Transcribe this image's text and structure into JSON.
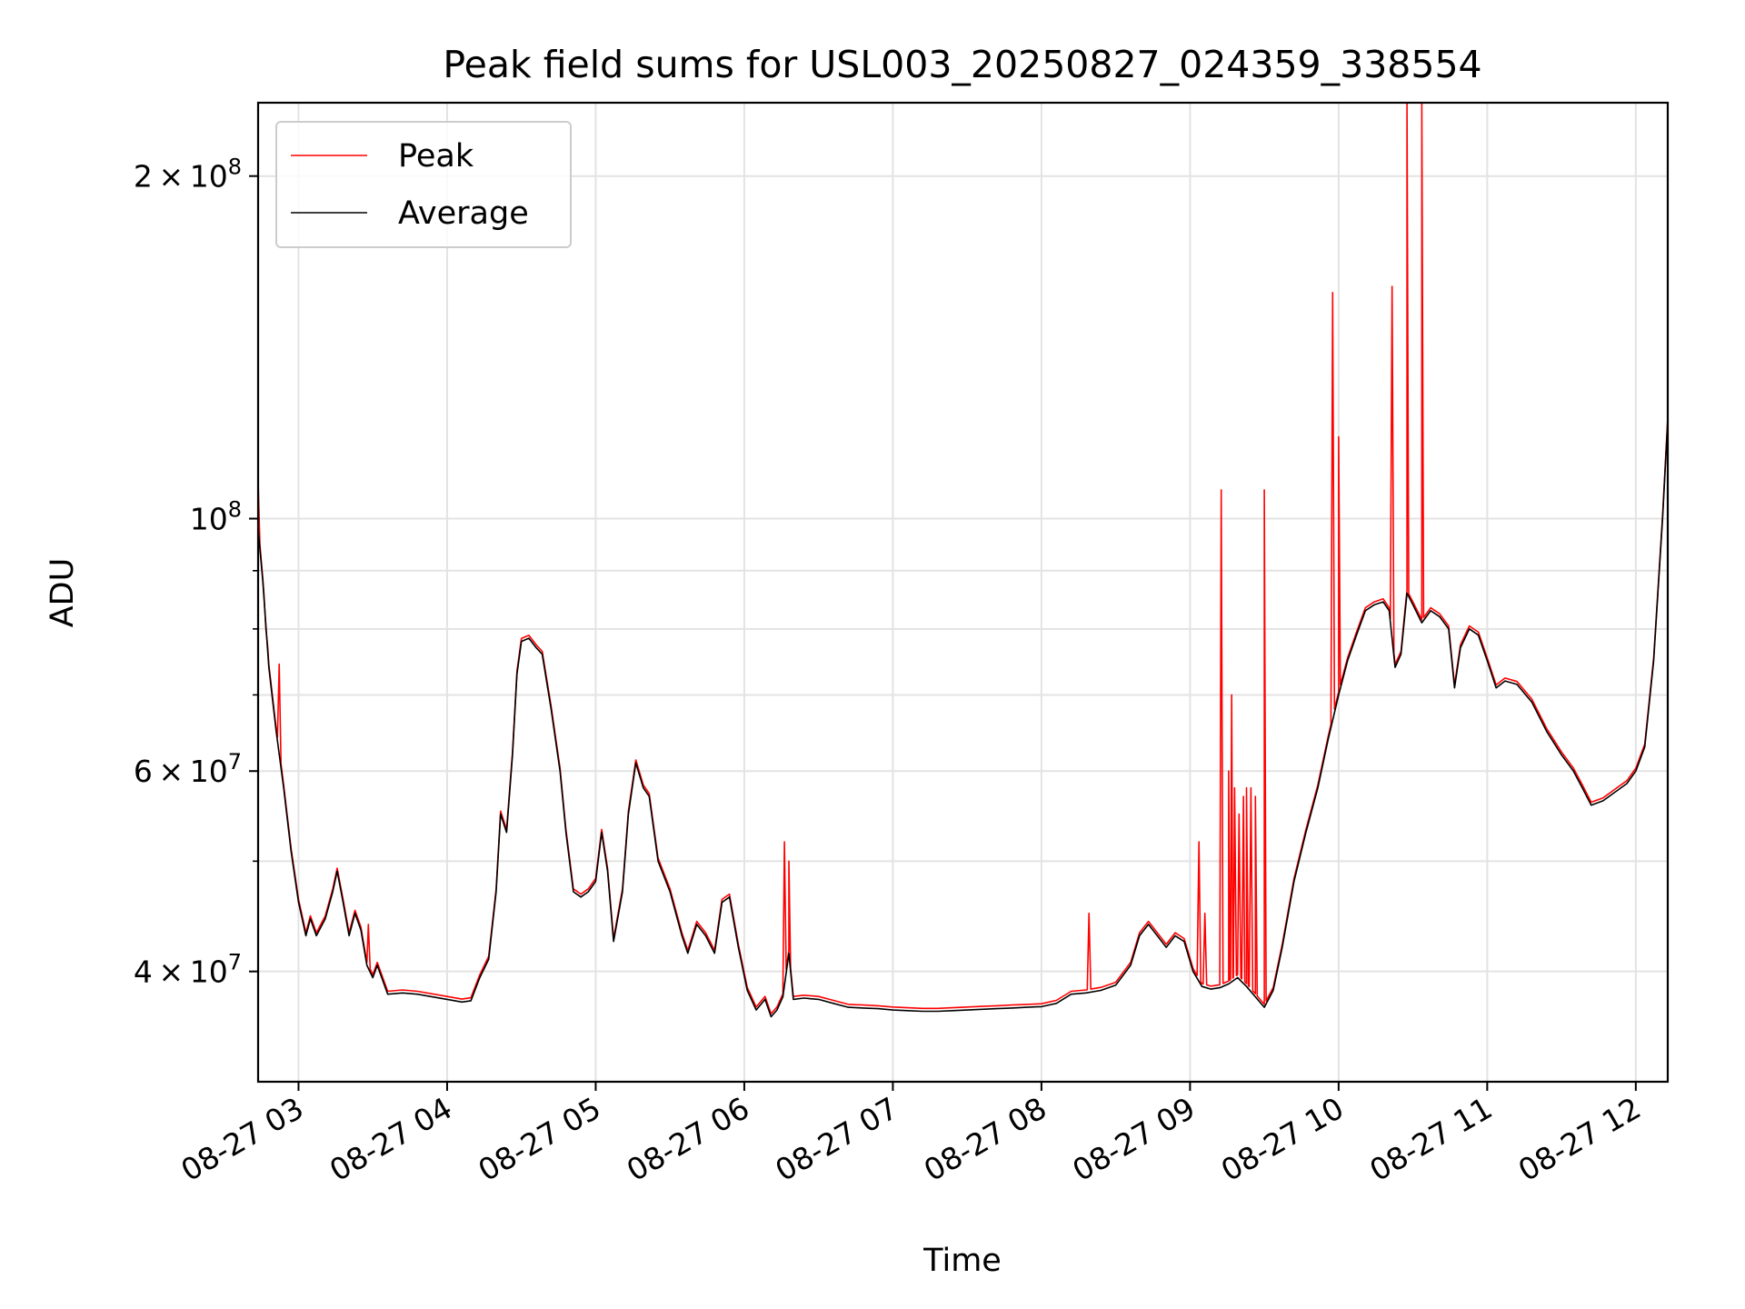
{
  "chart_data": {
    "type": "line",
    "title": "Peak field sums for USL003_20250827_024359_338554",
    "xlabel": "Time",
    "ylabel": "ADU",
    "yscale": "log",
    "grid": true,
    "legend": "top-left",
    "x_unit": "hours (2025-08-27)",
    "xlim": [
      2.728,
      12.215
    ],
    "ylim": [
      32000000,
      232000000
    ],
    "x_ticks": [
      3,
      4,
      5,
      6,
      7,
      8,
      9,
      10,
      11,
      12
    ],
    "x_tick_labels": [
      "08-27 03",
      "08-27 04",
      "08-27 05",
      "08-27 06",
      "08-27 07",
      "08-27 08",
      "08-27 09",
      "08-27 10",
      "08-27 11",
      "08-27 12"
    ],
    "y_ticks": [
      {
        "value": 200000000,
        "label": "2 × 10^8",
        "mantissa": "2",
        "exp": "8"
      },
      {
        "value": 100000000,
        "label": "10^8",
        "mantissa": "",
        "exp": "8"
      },
      {
        "value": 60000000,
        "label": "6 × 10^7",
        "mantissa": "6",
        "exp": "7"
      },
      {
        "value": 40000000,
        "label": "4 × 10^7",
        "mantissa": "4",
        "exp": "7"
      }
    ],
    "y_minor_ticks": [
      50000000,
      70000000,
      80000000,
      90000000
    ],
    "colors": {
      "peak": "#ff0000",
      "average": "#000000",
      "grid": "#e3e3e3"
    },
    "series": [
      {
        "name": "Average",
        "color": "#000000",
        "points": [
          [
            2.728,
            98000000
          ],
          [
            2.76,
            88000000
          ],
          [
            2.8,
            74000000
          ],
          [
            2.85,
            65000000
          ],
          [
            2.9,
            58000000
          ],
          [
            2.95,
            51000000
          ],
          [
            3.0,
            46000000
          ],
          [
            3.05,
            43000000
          ],
          [
            3.08,
            44500000
          ],
          [
            3.12,
            43000000
          ],
          [
            3.18,
            44500000
          ],
          [
            3.23,
            47000000
          ],
          [
            3.26,
            49000000
          ],
          [
            3.3,
            46000000
          ],
          [
            3.34,
            43000000
          ],
          [
            3.38,
            45000000
          ],
          [
            3.42,
            43500000
          ],
          [
            3.46,
            40500000
          ],
          [
            3.5,
            39500000
          ],
          [
            3.53,
            40500000
          ],
          [
            3.56,
            39500000
          ],
          [
            3.6,
            38200000
          ],
          [
            3.7,
            38300000
          ],
          [
            3.8,
            38200000
          ],
          [
            3.9,
            38000000
          ],
          [
            4.0,
            37800000
          ],
          [
            4.1,
            37600000
          ],
          [
            4.16,
            37700000
          ],
          [
            4.22,
            39500000
          ],
          [
            4.28,
            41000000
          ],
          [
            4.33,
            47000000
          ],
          [
            4.36,
            55000000
          ],
          [
            4.4,
            53000000
          ],
          [
            4.44,
            62000000
          ],
          [
            4.47,
            73000000
          ],
          [
            4.5,
            78000000
          ],
          [
            4.55,
            78500000
          ],
          [
            4.6,
            77000000
          ],
          [
            4.64,
            76000000
          ],
          [
            4.7,
            68000000
          ],
          [
            4.76,
            60000000
          ],
          [
            4.8,
            53000000
          ],
          [
            4.85,
            47000000
          ],
          [
            4.9,
            46500000
          ],
          [
            4.95,
            47000000
          ],
          [
            5.0,
            48000000
          ],
          [
            5.04,
            53000000
          ],
          [
            5.08,
            49000000
          ],
          [
            5.12,
            42500000
          ],
          [
            5.18,
            47000000
          ],
          [
            5.22,
            55000000
          ],
          [
            5.27,
            61000000
          ],
          [
            5.32,
            58000000
          ],
          [
            5.36,
            57000000
          ],
          [
            5.42,
            50000000
          ],
          [
            5.5,
            47000000
          ],
          [
            5.58,
            43000000
          ],
          [
            5.62,
            41500000
          ],
          [
            5.68,
            44000000
          ],
          [
            5.74,
            43000000
          ],
          [
            5.8,
            41500000
          ],
          [
            5.85,
            46000000
          ],
          [
            5.9,
            46500000
          ],
          [
            5.96,
            42000000
          ],
          [
            6.02,
            38500000
          ],
          [
            6.08,
            37000000
          ],
          [
            6.14,
            37800000
          ],
          [
            6.18,
            36500000
          ],
          [
            6.22,
            37000000
          ],
          [
            6.26,
            38000000
          ],
          [
            6.3,
            41500000
          ],
          [
            6.33,
            37800000
          ],
          [
            6.4,
            37900000
          ],
          [
            6.5,
            37800000
          ],
          [
            6.6,
            37500000
          ],
          [
            6.7,
            37200000
          ],
          [
            6.8,
            37150000
          ],
          [
            6.9,
            37100000
          ],
          [
            7.0,
            37000000
          ],
          [
            7.1,
            36950000
          ],
          [
            7.2,
            36900000
          ],
          [
            7.3,
            36900000
          ],
          [
            7.4,
            36950000
          ],
          [
            7.5,
            37000000
          ],
          [
            7.6,
            37050000
          ],
          [
            7.7,
            37100000
          ],
          [
            7.8,
            37150000
          ],
          [
            7.9,
            37200000
          ],
          [
            8.0,
            37250000
          ],
          [
            8.1,
            37500000
          ],
          [
            8.2,
            38200000
          ],
          [
            8.3,
            38300000
          ],
          [
            8.4,
            38500000
          ],
          [
            8.5,
            38900000
          ],
          [
            8.6,
            40500000
          ],
          [
            8.66,
            43000000
          ],
          [
            8.72,
            44000000
          ],
          [
            8.78,
            43000000
          ],
          [
            8.84,
            42000000
          ],
          [
            8.9,
            43000000
          ],
          [
            8.96,
            42500000
          ],
          [
            9.02,
            40000000
          ],
          [
            9.08,
            38800000
          ],
          [
            9.14,
            38600000
          ],
          [
            9.2,
            38700000
          ],
          [
            9.26,
            39000000
          ],
          [
            9.32,
            39500000
          ],
          [
            9.38,
            38800000
          ],
          [
            9.44,
            38000000
          ],
          [
            9.5,
            37200000
          ],
          [
            9.56,
            38500000
          ],
          [
            9.62,
            42000000
          ],
          [
            9.7,
            48000000
          ],
          [
            9.78,
            53000000
          ],
          [
            9.86,
            58000000
          ],
          [
            9.93,
            64000000
          ],
          [
            10.0,
            70000000
          ],
          [
            10.06,
            75000000
          ],
          [
            10.12,
            79000000
          ],
          [
            10.18,
            83000000
          ],
          [
            10.24,
            84000000
          ],
          [
            10.3,
            84500000
          ],
          [
            10.34,
            83000000
          ],
          [
            10.38,
            74000000
          ],
          [
            10.42,
            76000000
          ],
          [
            10.46,
            86000000
          ],
          [
            10.5,
            84000000
          ],
          [
            10.56,
            81000000
          ],
          [
            10.62,
            83000000
          ],
          [
            10.68,
            82000000
          ],
          [
            10.74,
            80000000
          ],
          [
            10.78,
            71000000
          ],
          [
            10.82,
            77000000
          ],
          [
            10.88,
            80000000
          ],
          [
            10.94,
            79000000
          ],
          [
            11.0,
            75000000
          ],
          [
            11.06,
            71000000
          ],
          [
            11.12,
            72000000
          ],
          [
            11.2,
            71500000
          ],
          [
            11.3,
            69000000
          ],
          [
            11.4,
            65000000
          ],
          [
            11.5,
            62000000
          ],
          [
            11.58,
            60000000
          ],
          [
            11.64,
            58000000
          ],
          [
            11.7,
            56000000
          ],
          [
            11.78,
            56500000
          ],
          [
            11.86,
            57500000
          ],
          [
            11.94,
            58500000
          ],
          [
            12.0,
            60000000
          ],
          [
            12.06,
            63000000
          ],
          [
            12.12,
            75000000
          ],
          [
            12.18,
            100000000
          ],
          [
            12.215,
            122000000
          ]
        ]
      },
      {
        "name": "Peak",
        "color": "#ff0000",
        "spikes": [
          [
            2.728,
            108000000
          ],
          [
            2.78,
            80000000
          ],
          [
            2.87,
            74500000
          ],
          [
            3.47,
            44000000
          ],
          [
            6.27,
            52000000
          ],
          [
            6.3,
            50000000
          ],
          [
            8.32,
            45000000
          ],
          [
            9.06,
            52000000
          ],
          [
            9.1,
            45000000
          ],
          [
            9.21,
            106000000
          ],
          [
            9.26,
            60000000
          ],
          [
            9.28,
            70000000
          ],
          [
            9.3,
            58000000
          ],
          [
            9.33,
            55000000
          ],
          [
            9.36,
            57000000
          ],
          [
            9.38,
            58000000
          ],
          [
            9.41,
            58000000
          ],
          [
            9.44,
            57000000
          ],
          [
            9.5,
            106000000
          ],
          [
            9.96,
            158000000
          ],
          [
            10.0,
            118000000
          ],
          [
            10.36,
            160000000
          ],
          [
            10.46,
            232000000
          ],
          [
            10.56,
            232000000
          ]
        ]
      }
    ]
  }
}
